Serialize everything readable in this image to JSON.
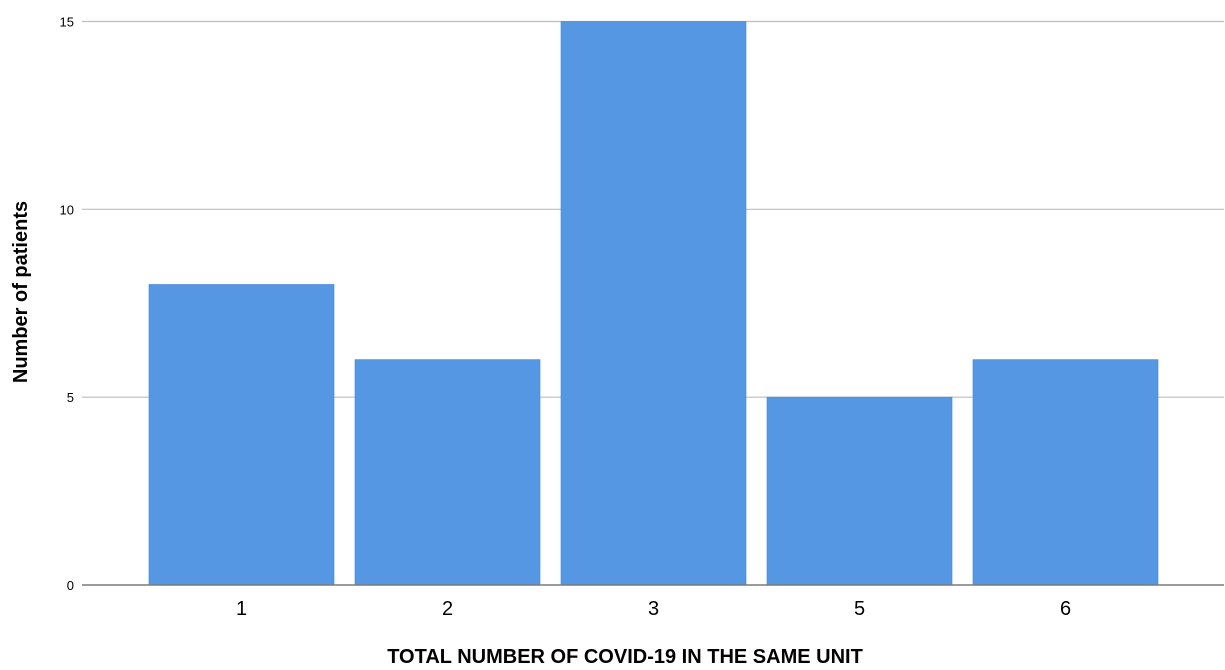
{
  "chart_data": {
    "type": "bar",
    "categories": [
      "1",
      "2",
      "3",
      "5",
      "6"
    ],
    "values": [
      8,
      6,
      15,
      5,
      6
    ],
    "title": "",
    "xlabel": "TOTAL NUMBER OF COVID-19 IN THE SAME UNIT",
    "ylabel": "Number of patients",
    "ylim": [
      0,
      15
    ],
    "yticks": [
      0,
      5,
      10,
      15
    ],
    "grid": "horizontal",
    "legend": "none",
    "bar_color": "#5697e4",
    "grid_color": "#bdbdbd",
    "axis_color": "#7a7a7a"
  }
}
